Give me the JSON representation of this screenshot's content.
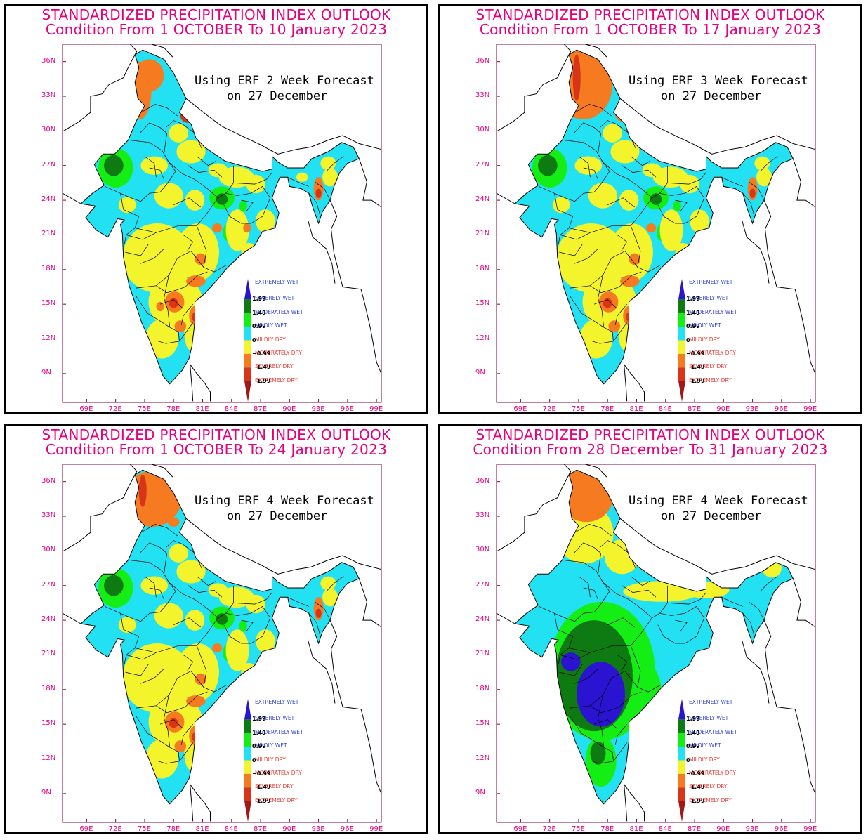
{
  "panels": [
    {
      "title_line1": "STANDARDIZED PRECIPITATION INDEX OUTLOOK",
      "title_line2": "Condition From 1 OCTOBER To 10 January 2023",
      "forecast_line1": "Using ERF 2 Week Forecast",
      "forecast_line2": "on 27 December",
      "scenario": "w2"
    },
    {
      "title_line1": "STANDARDIZED PRECIPITATION INDEX OUTLOOK",
      "title_line2": "Condition From 1 OCTOBER To 17 January 2023",
      "forecast_line1": "Using ERF 3 Week Forecast",
      "forecast_line2": "on 27 December",
      "scenario": "w3"
    },
    {
      "title_line1": "STANDARDIZED PRECIPITATION INDEX OUTLOOK",
      "title_line2": "Condition From 1 OCTOBER To 24 January 2023",
      "forecast_line1": "Using ERF 4 Week Forecast",
      "forecast_line2": "on 27 December",
      "scenario": "w4"
    },
    {
      "title_line1": "STANDARDIZED PRECIPITATION INDEX OUTLOOK",
      "title_line2": "Condition From 28 December To 31 January 2023",
      "forecast_line1": "Using ERF 4 Week Forecast",
      "forecast_line2": "on 27 December",
      "scenario": "month"
    }
  ],
  "axes": {
    "y_labels": [
      "36N",
      "33N",
      "30N",
      "27N",
      "24N",
      "21N",
      "18N",
      "15N",
      "12N",
      "9N"
    ],
    "y_values": [
      36,
      33,
      30,
      27,
      24,
      21,
      18,
      15,
      12,
      9
    ],
    "x_labels": [
      "69E",
      "72E",
      "75E",
      "78E",
      "81E",
      "84E",
      "87E",
      "90E",
      "93E",
      "96E",
      "99E"
    ],
    "x_values": [
      69,
      72,
      75,
      78,
      81,
      84,
      87,
      90,
      93,
      96,
      99
    ],
    "lon_range": [
      66.5,
      99.5
    ],
    "lat_range": [
      6.5,
      37.5
    ]
  },
  "legend": {
    "categories": [
      {
        "label": "EXTREMELY WET",
        "color": "#2a14d2",
        "text_color": "#2a3fd4"
      },
      {
        "label": "SEVERELY WET",
        "color": "#0e7a12",
        "text_color": "#2a3fd4"
      },
      {
        "label": "MODERATELY WET",
        "color": "#14ee14",
        "text_color": "#2a3fd4"
      },
      {
        "label": "MILDLY WET",
        "color": "#22e1f2",
        "text_color": "#2a3fd4"
      },
      {
        "label": "MILDLY DRY",
        "color": "#f4f42c",
        "text_color": "#e8403a"
      },
      {
        "label": "MODERATELY DRY",
        "color": "#f57a20",
        "text_color": "#e8403a"
      },
      {
        "label": "SEVERELY DRY",
        "color": "#d83418",
        "text_color": "#e8403a"
      },
      {
        "label": "EXTREMELY DRY",
        "color": "#a01818",
        "text_color": "#e8403a"
      }
    ],
    "values": [
      "1.99",
      "1.49",
      "0.99",
      "0",
      "−0.99",
      "−1.49",
      "−1.99"
    ]
  },
  "colors": {
    "title": "#e6007e",
    "axis_labels": "#e6007e",
    "frame": "#800040"
  }
}
